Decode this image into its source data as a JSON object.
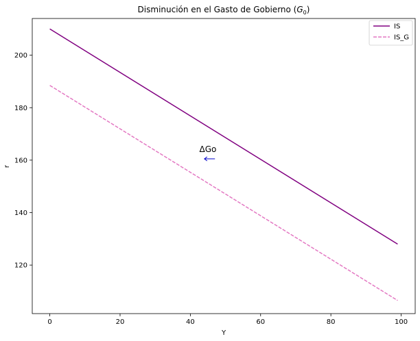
{
  "chart_data": {
    "type": "line",
    "title": "Disminución en el Gasto de Gobierno (",
    "title_math_main": "G",
    "title_math_sub": "0",
    "title_end": ")",
    "xlabel": "Y",
    "ylabel": "r",
    "xlim": [
      -5,
      104
    ],
    "ylim": [
      101.5,
      214
    ],
    "xticks": [
      0,
      20,
      40,
      60,
      80,
      100
    ],
    "yticks": [
      120,
      140,
      160,
      180,
      200
    ],
    "grid": false,
    "legend_position": "top-right",
    "series": [
      {
        "name": "IS",
        "color": "#800080",
        "dash": "solid",
        "x": [
          0,
          99
        ],
        "y": [
          210,
          128
        ]
      },
      {
        "name": "IS_G",
        "color": "#e377c2",
        "dash": "dashed",
        "x": [
          0,
          99
        ],
        "y": [
          188.5,
          106.5
        ]
      }
    ],
    "annotation": {
      "text": "ΔGo",
      "x": 45,
      "y": 161,
      "arrow_color": "#0000cc",
      "arrow_from": [
        47,
        160.5
      ],
      "arrow_to": [
        44,
        160.5
      ]
    }
  }
}
